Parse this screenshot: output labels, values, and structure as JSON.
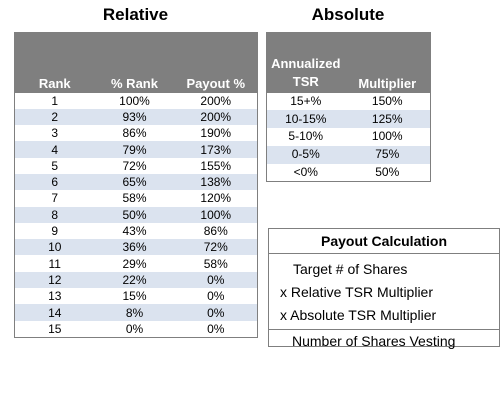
{
  "relative": {
    "title": "Relative",
    "headers": [
      "Rank",
      "% Rank",
      "Payout %"
    ],
    "rows": [
      [
        "1",
        "100%",
        "200%"
      ],
      [
        "2",
        "93%",
        "200%"
      ],
      [
        "3",
        "86%",
        "190%"
      ],
      [
        "4",
        "79%",
        "173%"
      ],
      [
        "5",
        "72%",
        "155%"
      ],
      [
        "6",
        "65%",
        "138%"
      ],
      [
        "7",
        "58%",
        "120%"
      ],
      [
        "8",
        "50%",
        "100%"
      ],
      [
        "9",
        "43%",
        "86%"
      ],
      [
        "10",
        "36%",
        "72%"
      ],
      [
        "11",
        "29%",
        "58%"
      ],
      [
        "12",
        "22%",
        "0%"
      ],
      [
        "13",
        "15%",
        "0%"
      ],
      [
        "14",
        "8%",
        "0%"
      ],
      [
        "15",
        "0%",
        "0%"
      ]
    ]
  },
  "absolute": {
    "title": "Absolute",
    "headers": {
      "tsr_line1": "Annualized",
      "tsr_line2": "TSR",
      "multiplier": "Multiplier"
    },
    "rows": [
      [
        "15+%",
        "150%"
      ],
      [
        "10-15%",
        "125%"
      ],
      [
        "5-10%",
        "100%"
      ],
      [
        "0-5%",
        "75%"
      ],
      [
        "<0%",
        "50%"
      ]
    ]
  },
  "payout": {
    "title": "Payout Calculation",
    "target": "Target # of Shares",
    "relative": "x Relative TSR Multiplier",
    "absolute": "x Absolute TSR Multiplier",
    "vesting": "Number of Shares Vesting"
  }
}
